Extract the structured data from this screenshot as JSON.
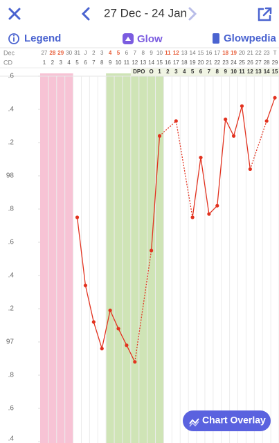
{
  "header": {
    "title": "27 Dec - 24 Jan"
  },
  "toolbar": {
    "legend": "Legend",
    "glow": "Glow",
    "glowpedia": "Glowpedia"
  },
  "chart_data": {
    "type": "line",
    "row_labels": {
      "month": "Dec",
      "cycle": "CD",
      "dpo": "DPO"
    },
    "dates": [
      "27",
      "28",
      "29",
      "30",
      "31",
      "J",
      "2",
      "3",
      "4",
      "5",
      "6",
      "7",
      "8",
      "9",
      "10",
      "11",
      "12",
      "13",
      "14",
      "15",
      "16",
      "17",
      "18",
      "19",
      "20",
      "21",
      "22",
      "23",
      "T"
    ],
    "weekend_columns": [
      1,
      2,
      8,
      9,
      15,
      16,
      22,
      23
    ],
    "weekend_color": "#e8603c",
    "x": [
      1,
      2,
      3,
      4,
      5,
      6,
      7,
      8,
      9,
      10,
      11,
      12,
      13,
      14,
      15,
      16,
      17,
      18,
      19,
      20,
      21,
      22,
      23,
      24,
      25,
      26,
      27,
      28,
      29
    ],
    "dpo": [
      "O",
      1,
      2,
      3,
      4,
      5,
      6,
      7,
      8,
      9,
      10,
      11,
      12,
      13,
      14,
      15
    ],
    "dpo_start": 14,
    "xlim": [
      0.5,
      29.5
    ],
    "ylim": [
      96.4,
      98.6
    ],
    "yticks": [
      {
        "value": 98.6,
        "label": ".6"
      },
      {
        "value": 98.4,
        "label": ".4"
      },
      {
        "value": 98.2,
        "label": ".2"
      },
      98,
      {
        "value": 97.8,
        "label": ".8"
      },
      {
        "value": 97.6,
        "label": ".6"
      },
      {
        "value": 97.4,
        "label": ".4"
      },
      {
        "value": 97.2,
        "label": ".2"
      },
      97,
      {
        "value": 96.8,
        "label": ".8"
      },
      {
        "value": 96.6,
        "label": ".6"
      },
      {
        "value": 96.4,
        "label": ".4"
      }
    ],
    "period": {
      "start": 1,
      "end": 4,
      "color": "#f7c3d5"
    },
    "fertile_window": {
      "start": 9,
      "end": 15,
      "color": "#cfe4b6"
    },
    "gap_style": "dotted",
    "series": [
      {
        "color": "#e2321f",
        "values": [
          null,
          null,
          null,
          null,
          97.75,
          97.34,
          97.12,
          96.96,
          97.19,
          97.08,
          96.98,
          96.88,
          null,
          97.55,
          98.24,
          null,
          98.33,
          null,
          97.75,
          98.11,
          97.77,
          97.82,
          98.34,
          98.24,
          98.42,
          98.04,
          null,
          98.33,
          98.47
        ]
      }
    ]
  },
  "button": {
    "label": "Chart Overlay"
  }
}
